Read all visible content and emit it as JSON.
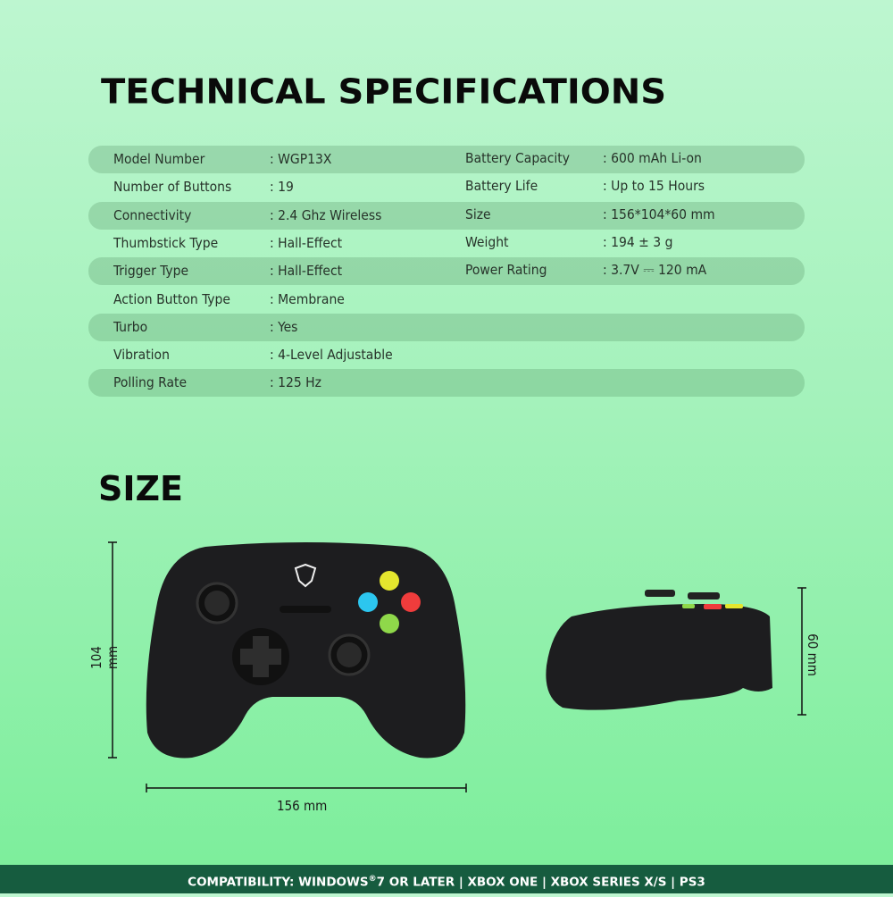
{
  "title": "TECHNICAL SPECIFICATIONS",
  "specs_left": [
    {
      "label": "Model Number",
      "value": ": WGP13X"
    },
    {
      "label": "Number of Buttons",
      "value": ": 19"
    },
    {
      "label": "Connectivity",
      "value": ": 2.4 Ghz Wireless"
    },
    {
      "label": "Thumbstick Type",
      "value": ": Hall-Effect"
    },
    {
      "label": "Trigger Type",
      "value": ": Hall-Effect"
    },
    {
      "label": "Action Button Type",
      "value": ": Membrane"
    },
    {
      "label": "Turbo",
      "value": ": Yes"
    },
    {
      "label": "Vibration",
      "value": ": 4-Level Adjustable"
    },
    {
      "label": "Polling Rate",
      "value": ": 125 Hz"
    }
  ],
  "specs_right": [
    {
      "label": "Battery Capacity",
      "value": ": 600 mAh Li-on"
    },
    {
      "label": "Battery Life",
      "value": ": Up to 15 Hours"
    },
    {
      "label": "Size",
      "value": ": 156*104*60 mm"
    },
    {
      "label": "Weight",
      "value": ": 194 ± 3 g"
    },
    {
      "label": "Power Rating",
      "value": ": 3.7V ⎓ 120 mA"
    }
  ],
  "size_section": {
    "title": "SIZE",
    "height_label": "104 mm",
    "width_label": "156  mm",
    "depth_label": "60 mm"
  },
  "footer": {
    "prefix": "COMPATIBILITY: WINDOWS",
    "reg": "®",
    "suffix": "7 OR LATER | XBOX ONE | XBOX SERIES X/S | PS3"
  },
  "colors": {
    "footer_bg": "#165c3f",
    "button_y": "#e4e62e",
    "button_b": "#ef3c3c",
    "button_a": "#8fd84a",
    "button_x": "#2cc6ef"
  }
}
